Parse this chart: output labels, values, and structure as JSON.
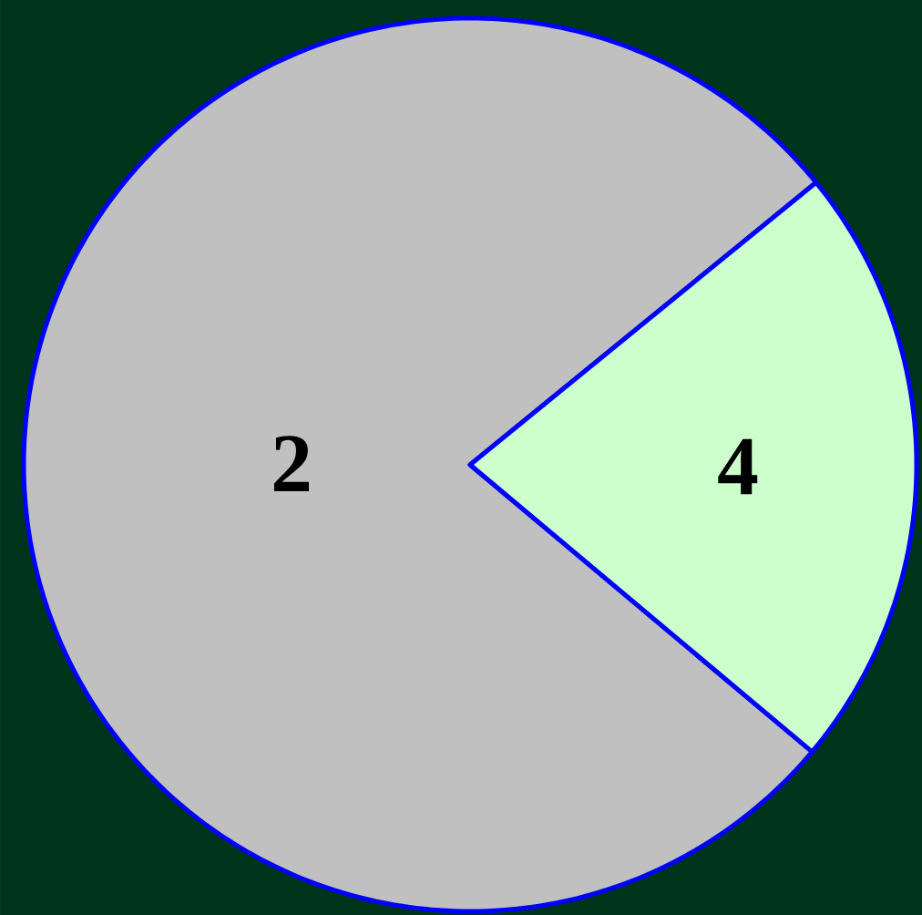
{
  "chart_data": {
    "type": "pie",
    "categories": [
      "2",
      "4"
    ],
    "values": [
      78,
      22
    ],
    "colors": [
      "#c0c0c0",
      "#ccffcc"
    ]
  }
}
